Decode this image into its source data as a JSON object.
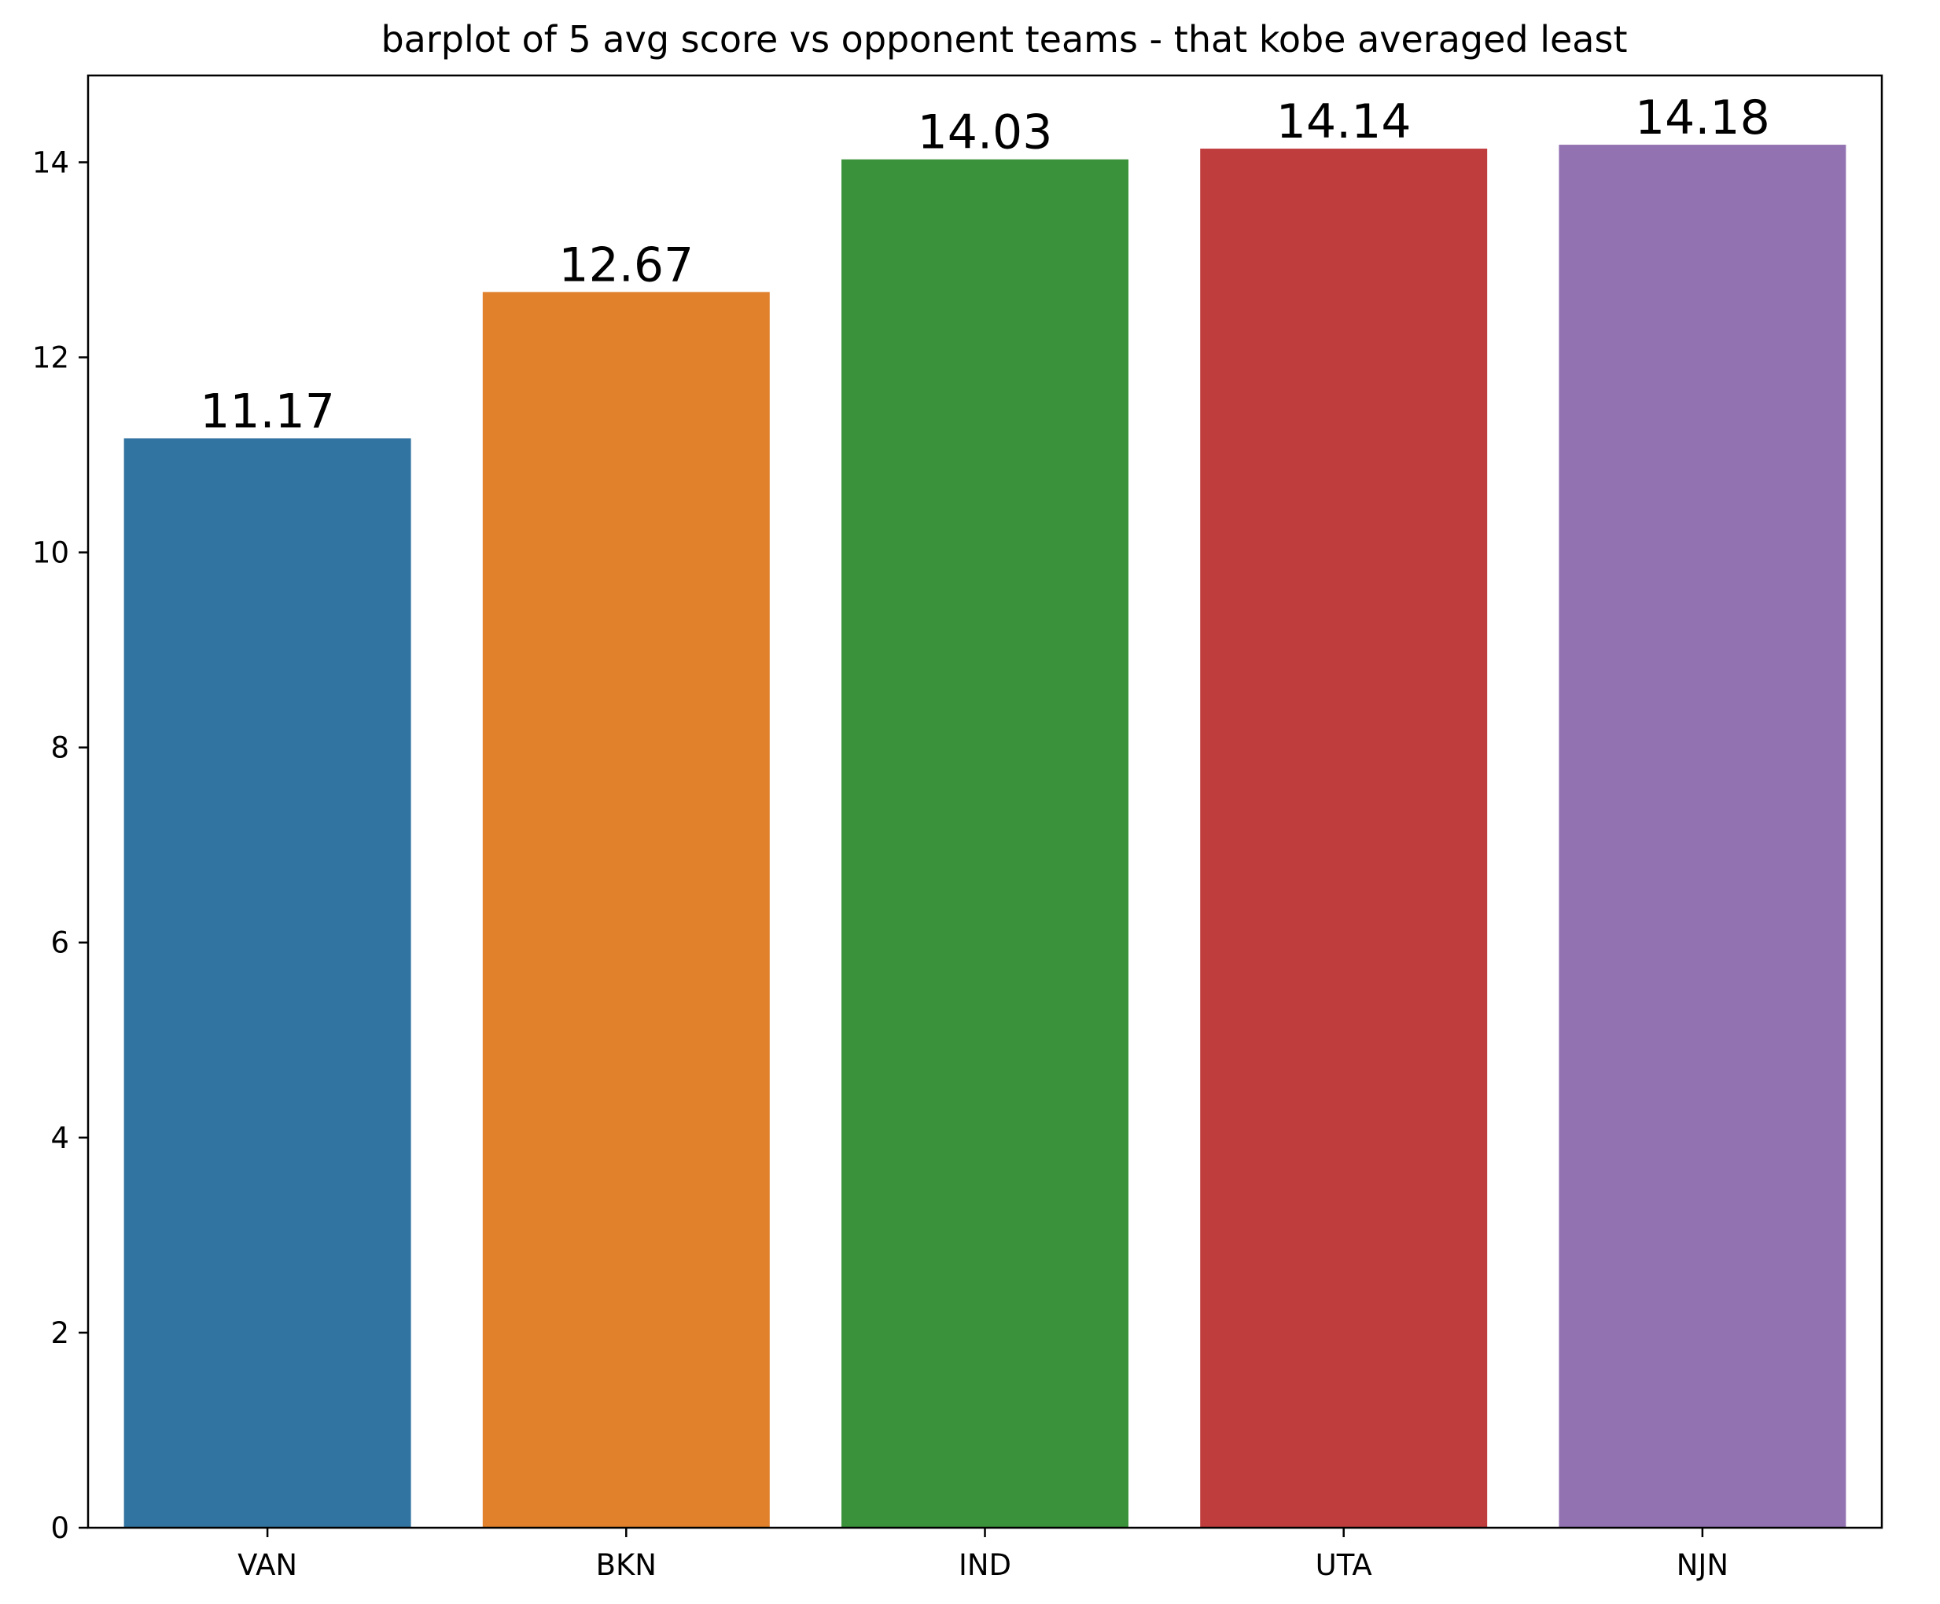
{
  "chart_data": {
    "type": "bar",
    "title": "barplot of 5 avg score vs opponent teams - that kobe averaged least",
    "xlabel": "",
    "ylabel": "",
    "categories": [
      "VAN",
      "BKN",
      "IND",
      "UTA",
      "NJN"
    ],
    "values": [
      11.17,
      12.67,
      14.03,
      14.14,
      14.18
    ],
    "value_labels": [
      "11.17",
      "12.67",
      "14.03",
      "14.14",
      "14.18"
    ],
    "colors": [
      "#3274a1",
      "#e1812c",
      "#3a923a",
      "#c03d3e",
      "#9372b2"
    ],
    "ylim": [
      0,
      14.89
    ],
    "yticks": [
      0,
      2,
      4,
      6,
      8,
      10,
      12,
      14
    ],
    "grid": false,
    "legend": "none"
  }
}
